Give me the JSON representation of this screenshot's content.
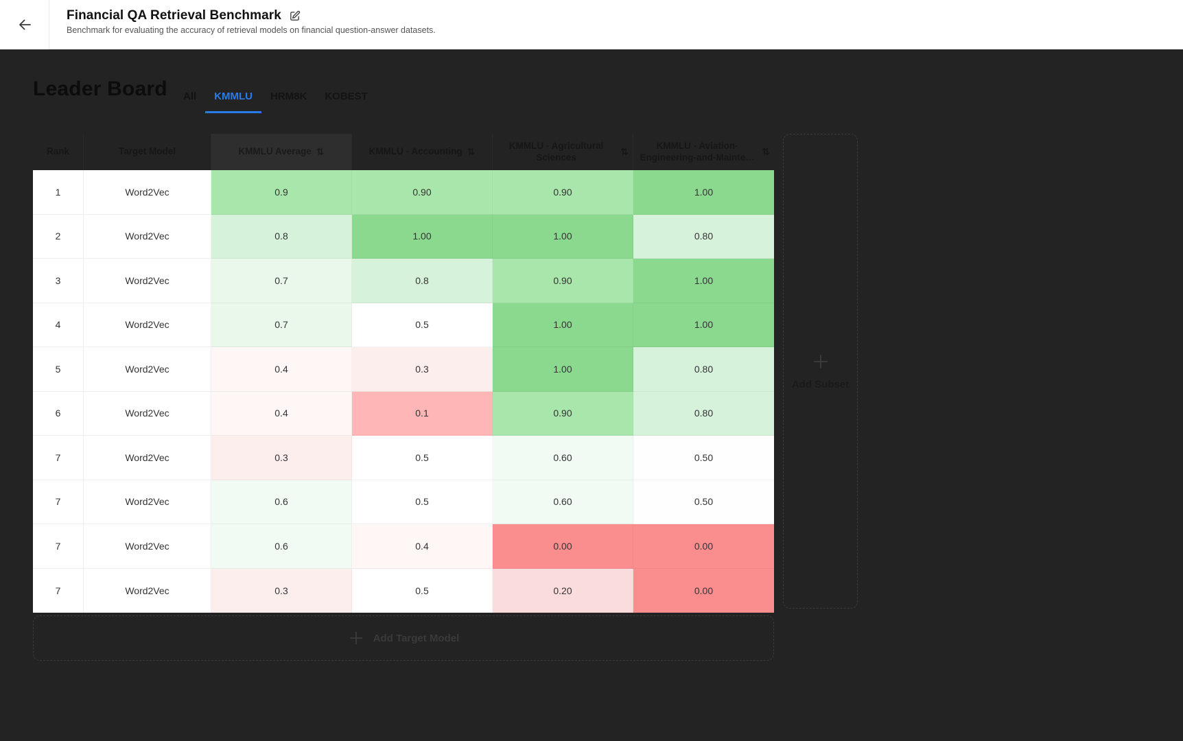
{
  "topbar": {
    "title": "Financial QA Retrieval Benchmark",
    "subtitle": "Benchmark for evaluating the accuracy of retrieval models on financial question-answer datasets."
  },
  "leaderboard": {
    "title": "Leader Board",
    "tabs": [
      {
        "label": "All",
        "active": false
      },
      {
        "label": "KMMLU",
        "active": true
      },
      {
        "label": "HRM8K",
        "active": false
      },
      {
        "label": "KOBEST",
        "active": false
      }
    ]
  },
  "table": {
    "sort_icon": "⇅",
    "columns": [
      {
        "label": "Rank",
        "sortable": false,
        "highlighted": false
      },
      {
        "label": "Target Model",
        "sortable": false,
        "highlighted": false
      },
      {
        "label": "KMMLU Average",
        "sortable": true,
        "highlighted": true
      },
      {
        "label": "KMMLU - Accounting",
        "sortable": true,
        "highlighted": false
      },
      {
        "label": "KMMLU - Agricultural Sciences",
        "sortable": true,
        "highlighted": false
      },
      {
        "label": "KMMLU - Aviation-Engineering-and-Mainte…",
        "sortable": true,
        "highlighted": false
      }
    ],
    "rows": [
      {
        "rank": "1",
        "model": "Word2Vec",
        "values": [
          "0.9",
          "0.90",
          "0.90",
          "1.00"
        ]
      },
      {
        "rank": "2",
        "model": "Word2Vec",
        "values": [
          "0.8",
          "1.00",
          "1.00",
          "0.80"
        ]
      },
      {
        "rank": "3",
        "model": "Word2Vec",
        "values": [
          "0.7",
          "0.8",
          "0.90",
          "1.00"
        ]
      },
      {
        "rank": "4",
        "model": "Word2Vec",
        "values": [
          "0.7",
          "0.5",
          "1.00",
          "1.00"
        ]
      },
      {
        "rank": "5",
        "model": "Word2Vec",
        "values": [
          "0.4",
          "0.3",
          "1.00",
          "0.80"
        ]
      },
      {
        "rank": "6",
        "model": "Word2Vec",
        "values": [
          "0.4",
          "0.1",
          "0.90",
          "0.80"
        ]
      },
      {
        "rank": "7",
        "model": "Word2Vec",
        "values": [
          "0.3",
          "0.5",
          "0.60",
          "0.50"
        ]
      },
      {
        "rank": "7",
        "model": "Word2Vec",
        "values": [
          "0.6",
          "0.5",
          "0.60",
          "0.50"
        ]
      },
      {
        "rank": "7",
        "model": "Word2Vec",
        "values": [
          "0.6",
          "0.4",
          "0.00",
          "0.00"
        ]
      },
      {
        "rank": "7",
        "model": "Word2Vec",
        "values": [
          "0.3",
          "0.5",
          "0.20",
          "0.00"
        ]
      }
    ],
    "value_colors": {
      "1.00": "#8bd88f",
      "0.90": "#a8e6ab",
      "0.9": "#a8e6ab",
      "0.80": "#d7f2da",
      "0.8": "#d7f2da",
      "0.7": "#e9f8eb",
      "0.6": "#f2fbf3",
      "0.60": "#f2fbf3",
      "0.5": "#ffffff",
      "0.50": "#fdfefd",
      "0.4": "#fff6f6",
      "0.3": "#fdeeee",
      "0.20": "#fbdcdc",
      "0.1": "#ffb6b6",
      "0.00": "#fa8e8e"
    }
  },
  "actions": {
    "add_subset": "Add Subset",
    "add_target_model": "Add Target Model"
  },
  "colors": {
    "accent_blue": "#2a7bea",
    "green_max": "#8bd88f",
    "red_min": "#fa8e8e",
    "overlay_bg": "#232323"
  }
}
